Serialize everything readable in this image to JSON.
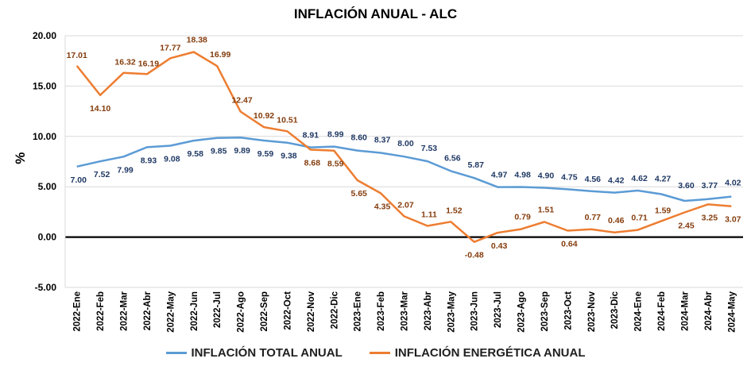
{
  "chart_data": {
    "type": "line",
    "title": "INFLACIÓN ANUAL - ALC",
    "ylabel": "%",
    "xlabel": "",
    "ylim": [
      -5,
      20
    ],
    "yticks": [
      "20.00",
      "15.00",
      "10.00",
      "5.00",
      "0.00",
      "-5.00"
    ],
    "categories": [
      "2022-Ene",
      "2022-Feb",
      "2022-Mar",
      "2022-Abr",
      "2022-May",
      "2022-Jun",
      "2022-Jul",
      "2022-Ago",
      "2022-Sep",
      "2022-Oct",
      "2022-Nov",
      "2022-Dic",
      "2023-Ene",
      "2023-Feb",
      "2023-Mar",
      "2023-Abr",
      "2023-May",
      "2023-Jun",
      "2023-Jul",
      "2023-Ago",
      "2023-Sep",
      "2023-Oct",
      "2023-Nov",
      "2023-Dic",
      "2024-Ene",
      "2024-Feb",
      "2024-Mar",
      "2024-Abr",
      "2024-May"
    ],
    "grid": true,
    "legend_position": "bottom",
    "series": [
      {
        "name": "INFLACIÓN TOTAL ANUAL",
        "color": "#5b9bd5",
        "label_color": "#1f3864",
        "values": [
          7.0,
          7.52,
          7.99,
          8.93,
          9.08,
          9.58,
          9.85,
          9.89,
          9.59,
          9.38,
          8.91,
          8.99,
          8.6,
          8.37,
          8.0,
          7.53,
          6.56,
          5.87,
          4.97,
          4.98,
          4.9,
          4.75,
          4.56,
          4.42,
          4.62,
          4.27,
          3.6,
          3.77,
          4.02
        ],
        "labels": [
          "7.00",
          "7.52",
          "7.99",
          "8.93",
          "9.08",
          "9.58",
          "9.85",
          "9.89",
          "9.59",
          "9.38",
          "8.91",
          "8.99",
          "8.60",
          "8.37",
          "8.00",
          "7.53",
          "6.56",
          "5.87",
          "4.97",
          "4.98",
          "4.90",
          "4.75",
          "4.56",
          "4.42",
          "4.62",
          "4.27",
          "3.60",
          "3.77",
          "4.02"
        ]
      },
      {
        "name": "INFLACIÓN ENERGÉTICA ANUAL",
        "color": "#ed7d31",
        "label_color": "#843c0c",
        "values": [
          17.01,
          14.1,
          16.32,
          16.19,
          17.77,
          18.38,
          16.99,
          12.47,
          10.92,
          10.51,
          8.68,
          8.59,
          5.65,
          4.35,
          2.07,
          1.11,
          1.52,
          -0.48,
          0.43,
          0.79,
          1.51,
          0.64,
          0.77,
          0.46,
          0.71,
          1.59,
          2.45,
          3.25,
          3.07
        ],
        "labels": [
          "17.01",
          "14.10",
          "16.32",
          "16.19",
          "17.77",
          "18.38",
          "16.99",
          "12.47",
          "10.92",
          "10.51",
          "8.68",
          "8.59",
          "5.65",
          "4.35",
          "2.07",
          "1.11",
          "1.52",
          "-0.48",
          "0.43",
          "0.79",
          "1.51",
          "0.64",
          "0.77",
          "0.46",
          "0.71",
          "1.59",
          "2.45",
          "3.25",
          "3.07"
        ]
      }
    ]
  }
}
